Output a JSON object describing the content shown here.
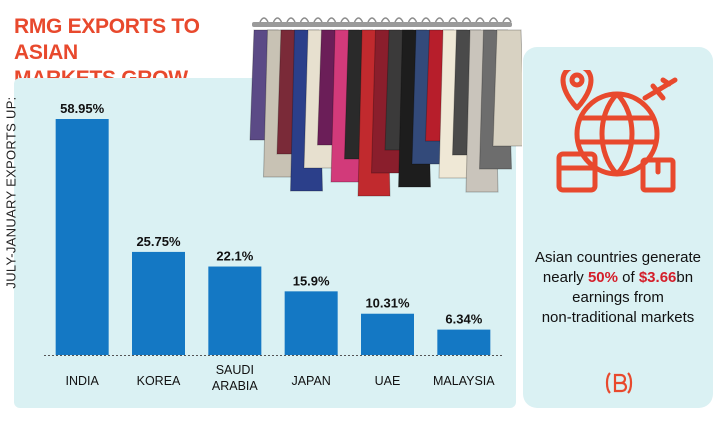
{
  "title": "RMG EXPORTS TO ASIAN\nMARKETS GROW",
  "accent_color": "#e8492d",
  "bar_color": "#1478c4",
  "panel_color": "#daf1f3",
  "chart_data": {
    "type": "bar",
    "title": "RMG EXPORTS TO ASIAN MARKETS GROW",
    "ylabel": "JULY-JANUARY EXPORTS UP:",
    "xlabel": "",
    "categories": [
      "INDIA",
      "KOREA",
      "SAUDI ARABIA",
      "JAPAN",
      "UAE",
      "MALAYSIA"
    ],
    "category_lines": [
      [
        "INDIA"
      ],
      [
        "KOREA"
      ],
      [
        "SAUDI",
        "ARABIA"
      ],
      [
        "JAPAN"
      ],
      [
        "UAE"
      ],
      [
        "MALAYSIA"
      ]
    ],
    "values": [
      58.95,
      25.75,
      22.1,
      15.9,
      10.31,
      6.34
    ],
    "value_labels": [
      "58.95%",
      "25.75%",
      "22.1%",
      "15.9%",
      "10.31%",
      "6.34%"
    ],
    "ylim": [
      0,
      60
    ],
    "grid": false,
    "legend": "none"
  },
  "info": {
    "line1": "Asian countries generate",
    "line2_pre": "nearly ",
    "line2_hl1": "50%",
    "line2_mid": " of ",
    "line2_hl2": "$3.66",
    "line2_post": "bn",
    "line3": "earnings from",
    "line4": "non-traditional markets",
    "highlight_color": "#d41e2a"
  },
  "icons": {
    "main": "globe-travel-icon",
    "logo": "brand-logo-icon",
    "photo": "clothes-rack-photo"
  }
}
